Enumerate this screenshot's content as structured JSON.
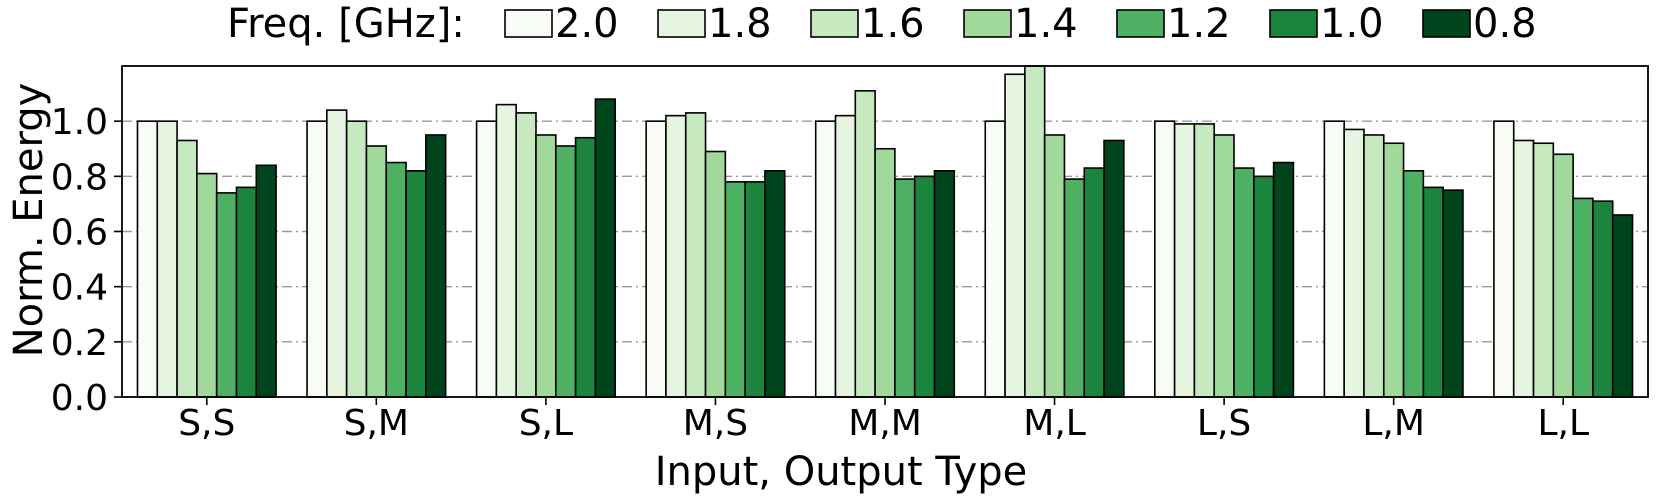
{
  "chart_data": {
    "type": "bar",
    "title": "",
    "xlabel": "Input, Output Type",
    "ylabel": "Norm. Energy",
    "ylim": [
      0,
      1.2
    ],
    "yticks": [
      "0.0",
      "0.2",
      "0.4",
      "0.6",
      "0.8",
      "1.0"
    ],
    "grid": "horizontal dash-dot",
    "legend_title": "Freq. [GHz]:",
    "legend_placement": "top",
    "categories": [
      "S,S",
      "S,M",
      "S,L",
      "M,S",
      "M,M",
      "M,L",
      "L,S",
      "L,M",
      "L,L"
    ],
    "series": [
      {
        "name": "2.0",
        "color": "#f7fcf5",
        "values": [
          1.0,
          1.0,
          1.0,
          1.0,
          1.0,
          1.0,
          1.0,
          1.0,
          1.0
        ]
      },
      {
        "name": "1.8",
        "color": "#e5f5e0",
        "values": [
          1.0,
          1.04,
          1.06,
          1.02,
          1.02,
          1.17,
          0.99,
          0.97,
          0.93
        ]
      },
      {
        "name": "1.6",
        "color": "#c7e9c0",
        "values": [
          0.93,
          1.0,
          1.03,
          1.03,
          1.11,
          1.2,
          0.99,
          0.95,
          0.92
        ]
      },
      {
        "name": "1.4",
        "color": "#a1d99b",
        "values": [
          0.81,
          0.91,
          0.95,
          0.89,
          0.9,
          0.95,
          0.95,
          0.92,
          0.88
        ]
      },
      {
        "name": "1.2",
        "color": "#4db062",
        "values": [
          0.74,
          0.85,
          0.91,
          0.78,
          0.79,
          0.79,
          0.83,
          0.82,
          0.72
        ]
      },
      {
        "name": "1.0",
        "color": "#1b843d",
        "values": [
          0.76,
          0.82,
          0.94,
          0.78,
          0.8,
          0.83,
          0.8,
          0.76,
          0.71
        ]
      },
      {
        "name": "0.8",
        "color": "#00441b",
        "values": [
          0.84,
          0.95,
          1.08,
          0.82,
          0.82,
          0.93,
          0.85,
          0.75,
          0.66
        ]
      }
    ]
  }
}
